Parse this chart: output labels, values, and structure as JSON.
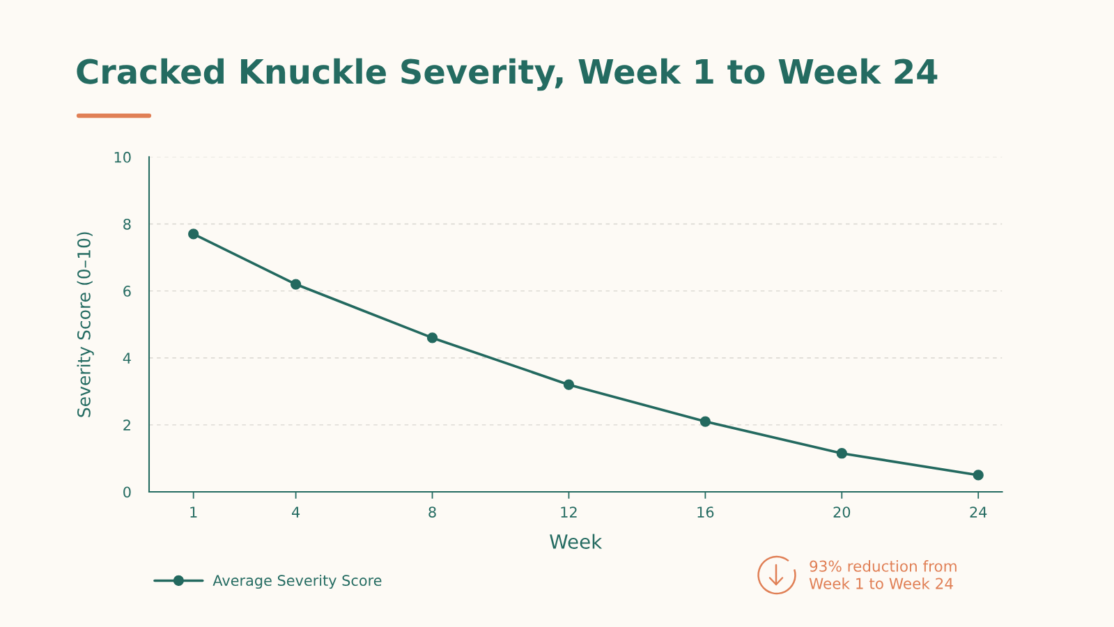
{
  "chart_data": {
    "type": "line",
    "title": "Cracked Knuckle Severity, Week 1 to Week 24",
    "xlabel": "Week",
    "ylabel": "Severity Score (0–10)",
    "x": [
      1,
      4,
      8,
      12,
      16,
      20,
      24
    ],
    "series": [
      {
        "name": "Average Severity Score",
        "color": "#23695f",
        "values": [
          7.7,
          6.2,
          4.6,
          3.2,
          2.1,
          1.15,
          0.5
        ]
      }
    ],
    "xlim": [
      -0.3,
      24.7
    ],
    "xticks": [
      1,
      4,
      8,
      12,
      16,
      20,
      24
    ],
    "ylim": [
      0,
      10
    ],
    "yticks": [
      0,
      2,
      4,
      6,
      8,
      10
    ],
    "grid": "y",
    "legend": "bottom left",
    "marker": "circle",
    "line_style": "solid",
    "annotations": [
      "93% reduction from\nWeek 1 to Week 24"
    ]
  }
}
